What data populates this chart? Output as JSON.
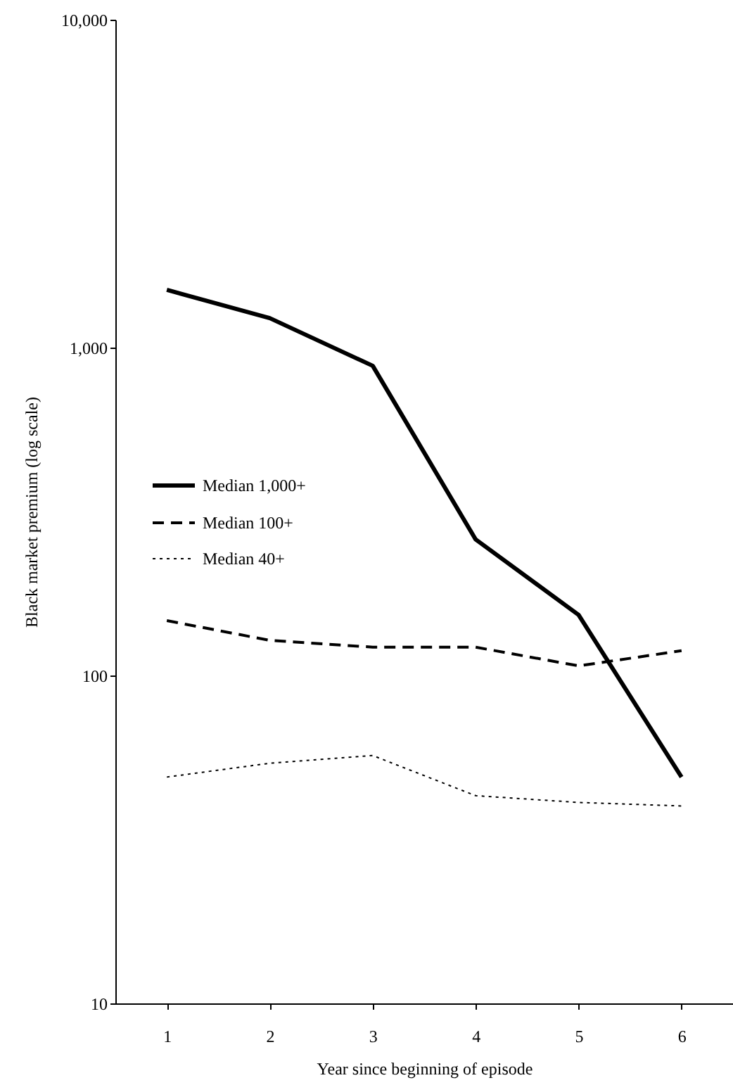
{
  "chart_data": {
    "type": "line",
    "xlabel": "Year since beginning of episode",
    "ylabel": "Black market premium (log scale)",
    "x": [
      1,
      2,
      3,
      4,
      5,
      6
    ],
    "xlim": [
      0.5,
      6.5
    ],
    "xticks": [
      1,
      2,
      3,
      4,
      5,
      6
    ],
    "ylim": [
      10,
      10000
    ],
    "yticks": [
      {
        "value": 10,
        "label": "10"
      },
      {
        "value": 100,
        "label": "100"
      },
      {
        "value": 1000,
        "label": "1,000"
      },
      {
        "value": 10000,
        "label": "10,000"
      }
    ],
    "log": "y",
    "grid": false,
    "legend": "left",
    "marker": "none",
    "series": [
      {
        "name": "Median 1,000+",
        "color": "#000000",
        "line_style": "solid",
        "values": [
          1500,
          1230,
          880,
          260,
          153,
          49
        ]
      },
      {
        "name": "Median 100+",
        "color": "#000000",
        "line_style": "dashed",
        "values": [
          147,
          128,
          122,
          122,
          107,
          119
        ]
      },
      {
        "name": "Median 40+",
        "color": "#000000",
        "line_style": "dotted",
        "values": [
          49,
          54,
          57,
          43,
          41,
          40
        ]
      }
    ]
  }
}
